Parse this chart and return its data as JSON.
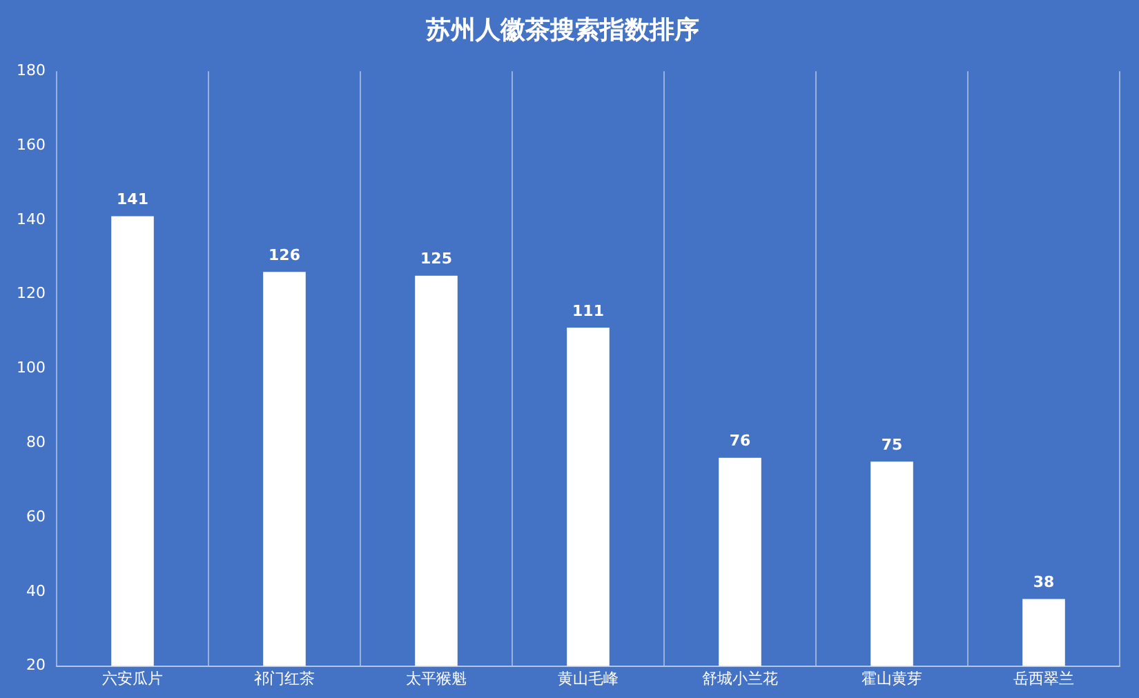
{
  "chart_data": {
    "type": "bar",
    "title": "苏州人徽茶搜索指数排序",
    "categories": [
      "六安瓜片",
      "祁门红茶",
      "太平猴魁",
      "黄山毛峰",
      "舒城小兰花",
      "霍山黄芽",
      "岳西翠兰"
    ],
    "values": [
      141,
      126,
      125,
      111,
      76,
      75,
      38
    ],
    "color": "#ffffff",
    "ylim": [
      20,
      180
    ],
    "yticks": [
      20,
      40,
      60,
      80,
      100,
      120,
      140,
      160,
      180
    ],
    "grid": "x",
    "data_labels": true,
    "legend": false
  }
}
